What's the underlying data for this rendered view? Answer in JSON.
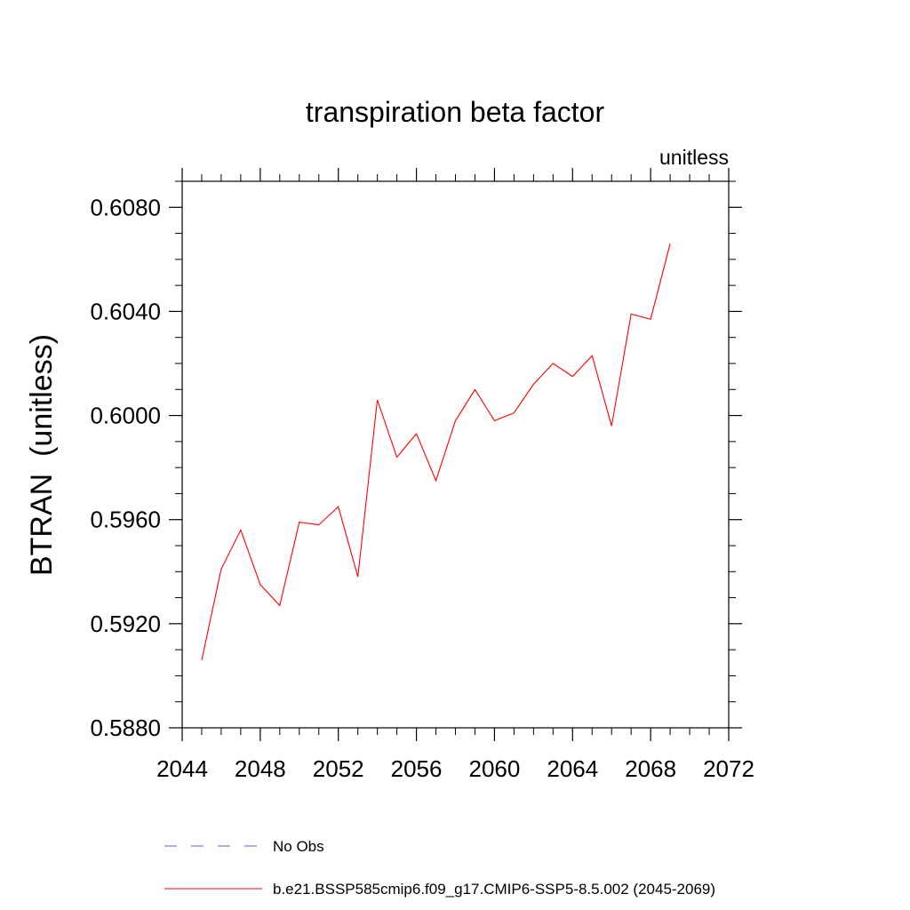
{
  "chart_data": {
    "type": "line",
    "title": "transpiration beta factor",
    "units_label": "unitless",
    "ylabel": "BTRAN  (unitless)",
    "xlabel": "",
    "xlim": [
      2044,
      2072
    ],
    "ylim": [
      0.588,
      0.609
    ],
    "x_ticks": [
      2044,
      2048,
      2052,
      2056,
      2060,
      2064,
      2068,
      2072
    ],
    "x_tick_labels": [
      "2044",
      "2048",
      "2052",
      "2056",
      "2060",
      "2064",
      "2068",
      "2072"
    ],
    "y_ticks": [
      0.588,
      0.592,
      0.596,
      0.6,
      0.604,
      0.608
    ],
    "y_tick_labels": [
      "0.5880",
      "0.5920",
      "0.5960",
      "0.6000",
      "0.6040",
      "0.6080"
    ],
    "grid": false,
    "legend_placement": "bottom",
    "series": [
      {
        "name": "No Obs",
        "color": "#6a5acd",
        "dash": "dashed",
        "x": [],
        "values": []
      },
      {
        "name": "b.e21.BSSP585cmip6.f09_g17.CMIP6-SSP5-8.5.002 (2045-2069)",
        "color": "#ff0000",
        "dash": "solid",
        "x": [
          2045,
          2046,
          2047,
          2048,
          2049,
          2050,
          2051,
          2052,
          2053,
          2054,
          2055,
          2056,
          2057,
          2058,
          2059,
          2060,
          2061,
          2062,
          2063,
          2064,
          2065,
          2066,
          2067,
          2068,
          2069
        ],
        "values": [
          0.5906,
          0.5941,
          0.5956,
          0.5935,
          0.5927,
          0.5959,
          0.5958,
          0.5965,
          0.5938,
          0.6006,
          0.5984,
          0.5993,
          0.5975,
          0.5998,
          0.601,
          0.5998,
          0.6001,
          0.6012,
          0.602,
          0.6015,
          0.6023,
          0.5996,
          0.6039,
          0.6037,
          0.6066
        ]
      }
    ]
  }
}
